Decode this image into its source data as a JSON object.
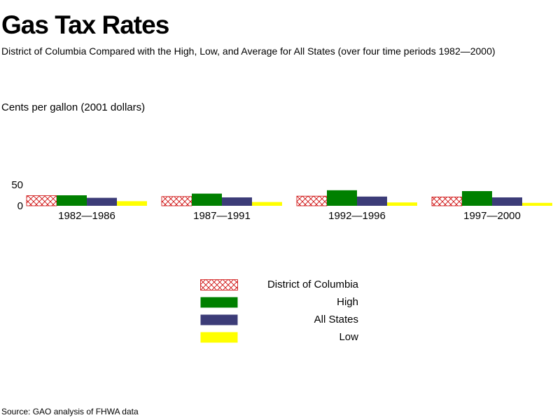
{
  "title": "Gas Tax Rates",
  "subtitle": "District of Columbia Compared with the High, Low, and Average for All States (over four time periods 1982—2000)",
  "source": "Source: GAO analysis of FHWA data",
  "chart_data": {
    "type": "bar",
    "ylabel": "Cents per gallon (2001 dollars)",
    "ylim": [
      0,
      50
    ],
    "yticks": [
      0,
      50
    ],
    "categories": [
      "1982—1986",
      "1987—1991",
      "1992—1996",
      "1997—2000"
    ],
    "series": [
      {
        "name": "District of Columbia",
        "values": [
          24,
          22,
          23,
          21
        ],
        "color": "#cc0000",
        "pattern": "crosshatch"
      },
      {
        "name": "High",
        "values": [
          25,
          29,
          37,
          35
        ],
        "color": "#008000"
      },
      {
        "name": "All States",
        "values": [
          19,
          20,
          22,
          20
        ],
        "color": "#3c3c78"
      },
      {
        "name": "Low",
        "values": [
          11,
          9,
          8,
          7
        ],
        "color": "#ffff00"
      }
    ],
    "legend_position": "bottom-center",
    "grid": false
  }
}
